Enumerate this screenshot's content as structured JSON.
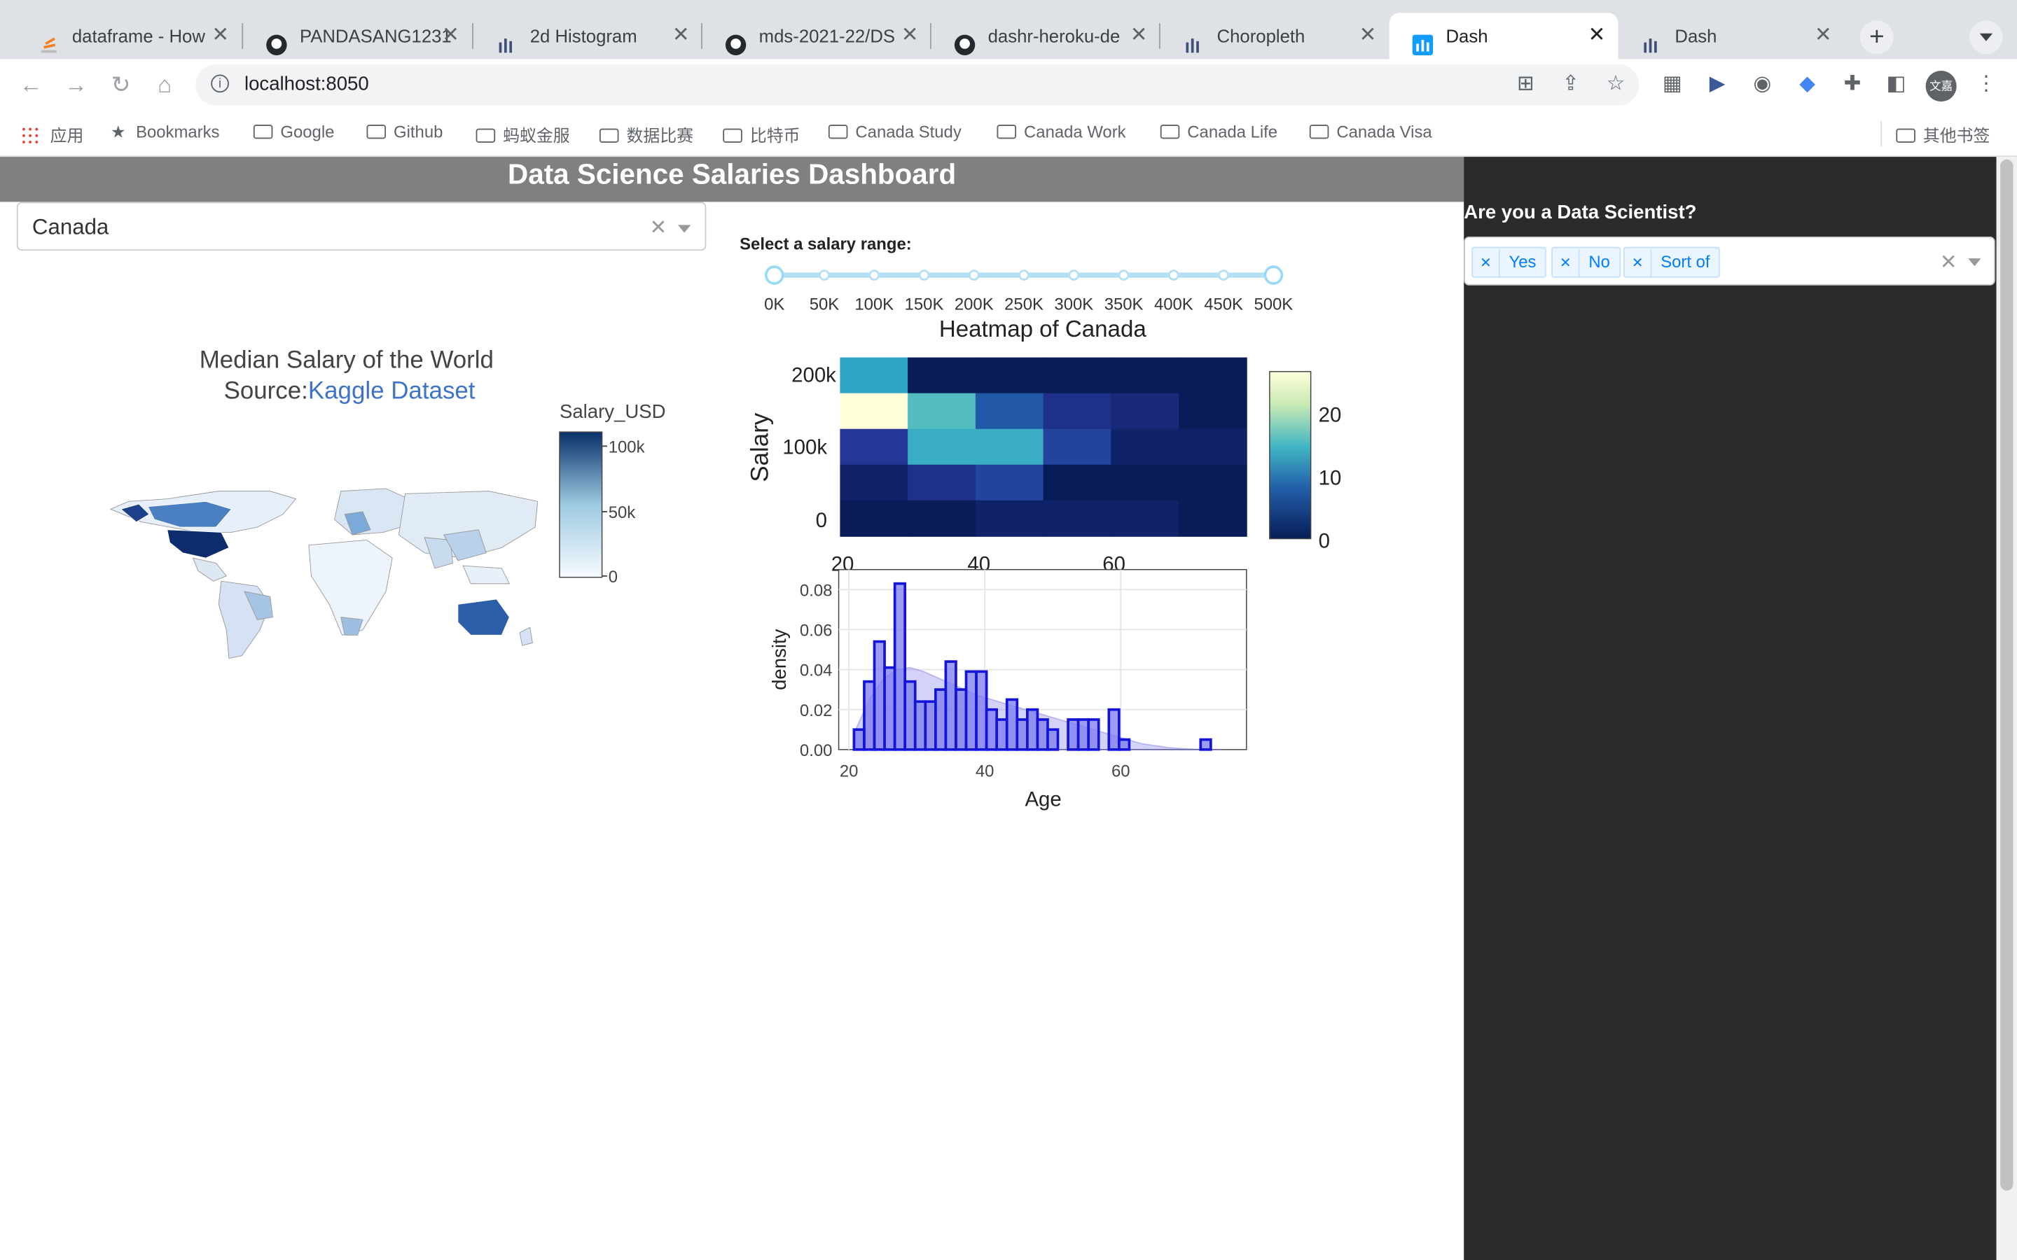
{
  "browser": {
    "tabs": [
      {
        "title": "dataframe - How",
        "icon": "stackoverflow-icon"
      },
      {
        "title": "PANDASANG1231",
        "icon": "github-icon"
      },
      {
        "title": "2d Histogram",
        "icon": "plotly-icon"
      },
      {
        "title": "mds-2021-22/DS",
        "icon": "github-icon"
      },
      {
        "title": "dashr-heroku-de",
        "icon": "github-icon"
      },
      {
        "title": "Choropleth",
        "icon": "plotly-icon"
      },
      {
        "title": "Dash",
        "icon": "dash-icon",
        "active": true
      },
      {
        "title": "Dash",
        "icon": "plotly-icon"
      }
    ],
    "url": "localhost:8050",
    "bookmarks": {
      "apps": "应用",
      "items": [
        "Bookmarks",
        "Google",
        "Github",
        "蚂蚁金服",
        "数据比赛",
        "比特币",
        "Canada Study",
        "Canada Work",
        "Canada Life",
        "Canada Visa"
      ],
      "other": "其他书签"
    },
    "profile_initials": "文嘉"
  },
  "app": {
    "title": "Data Science Salaries Dashboard",
    "country_dropdown": {
      "value": "Canada"
    },
    "salary_slider": {
      "label": "Select a salary range:",
      "marks": [
        "0K",
        "50K",
        "100K",
        "150K",
        "200K",
        "250K",
        "300K",
        "350K",
        "400K",
        "450K",
        "500K"
      ],
      "selected_range": [
        "0K",
        "500K"
      ]
    },
    "sidebar": {
      "question": "Are you a Data Scientist?",
      "options": [
        "Yes",
        "No",
        "Sort of"
      ]
    }
  },
  "chart_data": [
    {
      "type": "choropleth",
      "title": "Median Salary of the World",
      "subtitle_prefix": "Source:",
      "subtitle_link": "Kaggle Dataset",
      "colorbar_title": "Salary_USD",
      "colorbar_ticks": [
        "100k",
        "50k",
        "0"
      ],
      "colorscale": [
        "#f7fbff",
        "#c6dbef",
        "#6baed6",
        "#2171b5",
        "#08306b"
      ],
      "highlighted": [
        "United States",
        "Canada",
        "Australia"
      ]
    },
    {
      "type": "heatmap",
      "title": "Heatmap of  Canada",
      "ylabel": "Salary",
      "x_ticks": [
        "20",
        "40",
        "60"
      ],
      "y_ticks": [
        "200k",
        "100k",
        "0"
      ],
      "x_bins": [
        20,
        30,
        40,
        50,
        60,
        70,
        80
      ],
      "z": [
        [
          13,
          0,
          0,
          0,
          0,
          0
        ],
        [
          26,
          16,
          7,
          3,
          2,
          0
        ],
        [
          4,
          14,
          14,
          5,
          1,
          1
        ],
        [
          1,
          3,
          5,
          0,
          0,
          0
        ],
        [
          0,
          0,
          1,
          1,
          1,
          0
        ]
      ],
      "colorbar_ticks": [
        "20",
        "10",
        "0"
      ],
      "colorscale": [
        "#081d58",
        "#253494",
        "#225ea8",
        "#1d91c0",
        "#41b6c4",
        "#7fcdbb",
        "#c7e9b4",
        "#ffffd9"
      ],
      "zmax": 26
    },
    {
      "type": "bar",
      "subtype": "histogram with density",
      "xlabel": "Age",
      "ylabel": "density",
      "xlim": [
        20,
        80
      ],
      "ylim": [
        0,
        0.09
      ],
      "x_ticks": [
        "20",
        "40",
        "60"
      ],
      "y_ticks": [
        "0.00",
        "0.02",
        "0.04",
        "0.06",
        "0.08"
      ],
      "bin_width": 1.5,
      "x": [
        21.5,
        23,
        24.5,
        26,
        27.5,
        29,
        30.5,
        32,
        33.5,
        35,
        36.5,
        38,
        39.5,
        41,
        42.5,
        44,
        45.5,
        47,
        48.5,
        50,
        51.5,
        53,
        54.5,
        56,
        57.5,
        59,
        60.5,
        62,
        63.5,
        65,
        66.5,
        68,
        69.5,
        71,
        72.5,
        74
      ],
      "values": [
        0.01,
        0.034,
        0.054,
        0.041,
        0.083,
        0.034,
        0.024,
        0.024,
        0.03,
        0.044,
        0.03,
        0.039,
        0.039,
        0.02,
        0.015,
        0.025,
        0.015,
        0.02,
        0.015,
        0.01,
        0.0,
        0.015,
        0.015,
        0.015,
        0.0,
        0.02,
        0.005,
        0.0,
        0.0,
        0.0,
        0.0,
        0.0,
        0.0,
        0.0,
        0.005,
        0.0
      ],
      "density_curve": {
        "x": [
          21,
          23,
          25,
          27,
          29,
          31,
          33,
          35,
          37,
          39,
          41,
          43,
          45,
          47,
          49,
          51,
          53,
          55,
          57,
          59,
          61,
          63,
          65,
          67,
          69,
          71,
          73,
          75
        ],
        "y": [
          0.01,
          0.025,
          0.035,
          0.04,
          0.041,
          0.039,
          0.036,
          0.033,
          0.03,
          0.027,
          0.025,
          0.023,
          0.021,
          0.019,
          0.017,
          0.015,
          0.013,
          0.011,
          0.009,
          0.007,
          0.005,
          0.003,
          0.002,
          0.001,
          0.0005,
          0.0002,
          0.0001,
          0.0
        ]
      }
    }
  ]
}
